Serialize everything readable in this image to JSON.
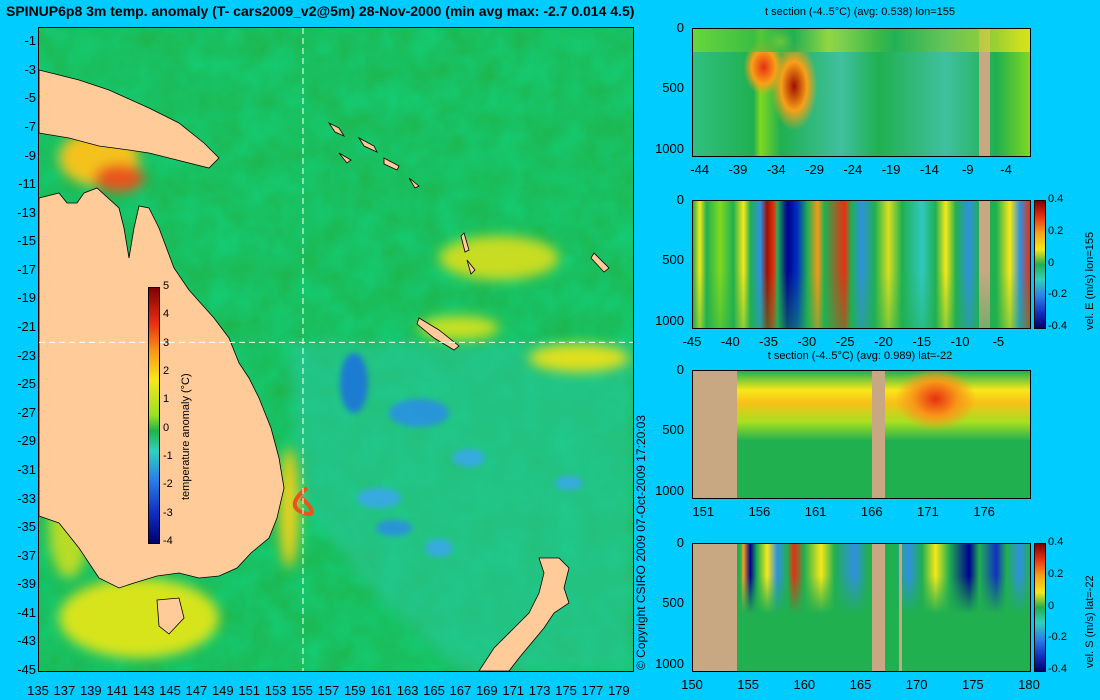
{
  "title": "SPINUP6p8 3m temp. anomaly (T- cars2009_v2@5m) 28-Nov-2000 (min avg max: -2.7 0.014 4.5)",
  "copyright": "© Copyright CSIRO 2009   07-Oct-2009 17:20:03",
  "colors": {
    "background": "#00ccff",
    "land": "#ffcc99",
    "section_land": "#c8a882",
    "ocean_green": "#22b24c"
  },
  "chart_data": [
    {
      "type": "heatmap",
      "name": "map",
      "title": "SPINUP6p8 3m temp. anomaly (T- cars2009_v2@5m) 28-Nov-2000 (min avg max: -2.7 0.014 4.5)",
      "x_ticks": [
        "135",
        "137",
        "139",
        "141",
        "143",
        "145",
        "147",
        "149",
        "151",
        "153",
        "155",
        "157",
        "159",
        "161",
        "163",
        "165",
        "167",
        "169",
        "171",
        "173",
        "175",
        "177",
        "179"
      ],
      "y_ticks": [
        "-1",
        "-3",
        "-5",
        "-7",
        "-9",
        "-11",
        "-13",
        "-15",
        "-17",
        "-19",
        "-21",
        "-23",
        "-25",
        "-27",
        "-29",
        "-31",
        "-33",
        "-35",
        "-37",
        "-39",
        "-41",
        "-43",
        "-45"
      ],
      "xlim": [
        135,
        180
      ],
      "ylim": [
        -45,
        0
      ],
      "colorbar": {
        "label": "temperature anomaly (°C)",
        "ticks": [
          "5",
          "4",
          "3",
          "2",
          "1",
          "0",
          "-1",
          "-2",
          "-3",
          "-4"
        ],
        "range": [
          -4,
          5
        ]
      },
      "crosshair": {
        "lon": 155,
        "lat": -22
      }
    },
    {
      "type": "heatmap",
      "name": "t-section-lon",
      "title": "t section (-4..5°C) (avg: 0.538) lon=155",
      "x_ticks": [
        "-44",
        "-39",
        "-34",
        "-29",
        "-24",
        "-19",
        "-14",
        "-9",
        "-4"
      ],
      "y_ticks": [
        "0",
        "500",
        "1000"
      ],
      "xlim": [
        -45,
        -1
      ],
      "ylim": [
        1050,
        0
      ]
    },
    {
      "type": "heatmap",
      "name": "vel-e-section-lon",
      "x_ticks": [
        "-45",
        "-40",
        "-35",
        "-30",
        "-25",
        "-20",
        "-15",
        "-10",
        "-5"
      ],
      "y_ticks": [
        "0",
        "500",
        "1000"
      ],
      "xlim": [
        -45,
        -1
      ],
      "ylim": [
        1050,
        0
      ],
      "colorbar": {
        "label": "vel. E (m/s) lon=155",
        "ticks": [
          "0.4",
          "0.2",
          "0",
          "-0.2",
          "-0.4"
        ],
        "range": [
          -0.4,
          0.4
        ]
      }
    },
    {
      "type": "heatmap",
      "name": "t-section-lat",
      "title": "t section (-4..5°C) (avg: 0.989) lat=-22",
      "x_ticks": [
        "151",
        "156",
        "161",
        "166",
        "171",
        "176"
      ],
      "y_ticks": [
        "0",
        "500",
        "1000"
      ],
      "xlim": [
        150,
        180
      ],
      "ylim": [
        1050,
        0
      ]
    },
    {
      "type": "heatmap",
      "name": "vel-s-section-lat",
      "x_ticks": [
        "150",
        "155",
        "160",
        "165",
        "170",
        "175",
        "180"
      ],
      "y_ticks": [
        "0",
        "500",
        "1000"
      ],
      "xlim": [
        150,
        180
      ],
      "ylim": [
        1050,
        0
      ],
      "colorbar": {
        "label": "vel. S (m/s) lat=-22",
        "ticks": [
          "0.4",
          "0.2",
          "0",
          "-0.2",
          "-0.4"
        ],
        "range": [
          -0.4,
          0.4
        ]
      }
    }
  ]
}
